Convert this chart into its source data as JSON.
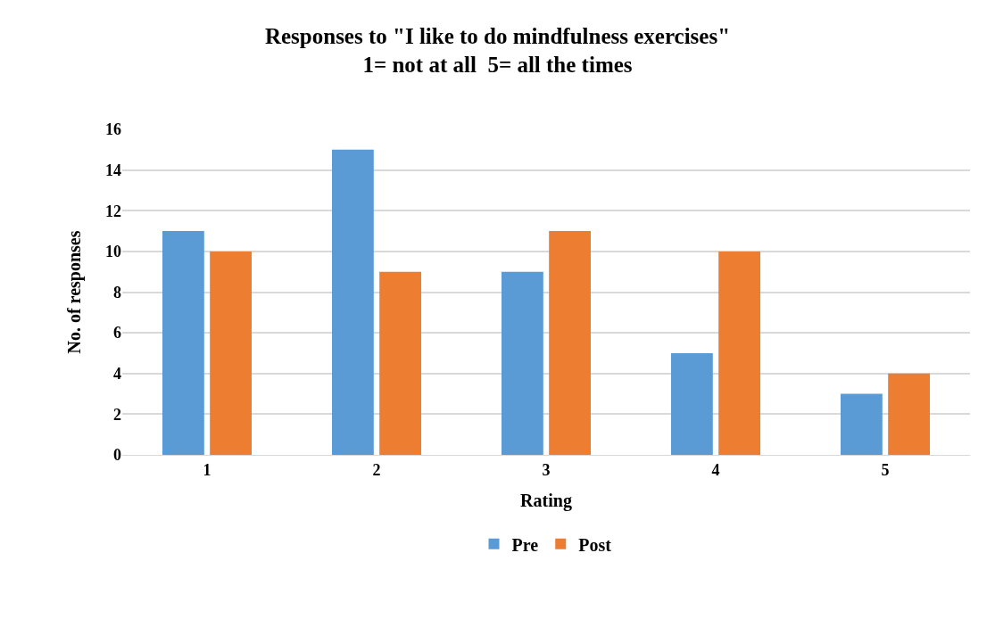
{
  "chart_data": {
    "type": "bar",
    "title": "Responses to \"I like to do mindfulness exercises\"\n1= not at all  5= all the times",
    "xlabel": "Rating",
    "ylabel": "No. of responses",
    "categories": [
      "1",
      "2",
      "3",
      "4",
      "5"
    ],
    "series": [
      {
        "name": "Pre",
        "color": "#5b9bd5",
        "values": [
          11,
          15,
          9,
          5,
          3
        ]
      },
      {
        "name": "Post",
        "color": "#ed7d31",
        "values": [
          10,
          9,
          11,
          10,
          4
        ]
      }
    ],
    "ylim": [
      0,
      16
    ],
    "yticks": [
      0,
      2,
      4,
      6,
      8,
      10,
      12,
      14,
      16
    ],
    "grid": "y",
    "legend": "bottom"
  }
}
